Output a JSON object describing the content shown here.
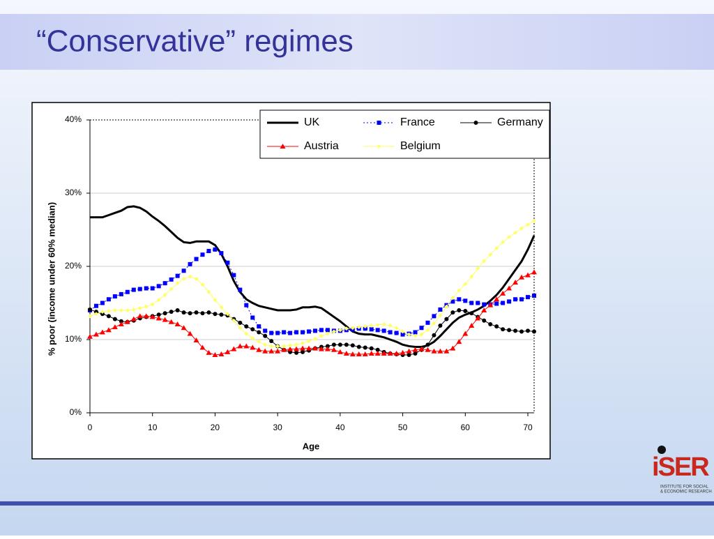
{
  "slide": {
    "title": "“Conservative” regimes",
    "logo": {
      "name": "iSER",
      "subtitle": [
        "INSTITUTE FOR SOCIAL",
        "& ECONOMIC RESEARCH"
      ]
    }
  },
  "chart_data": {
    "type": "line",
    "x_label": "Age",
    "y_label": "% poor (income under 60% median)",
    "x": [
      0,
      1,
      2,
      3,
      4,
      5,
      6,
      7,
      8,
      9,
      10,
      11,
      12,
      13,
      14,
      15,
      16,
      17,
      18,
      19,
      20,
      21,
      22,
      23,
      24,
      25,
      26,
      27,
      28,
      29,
      30,
      31,
      32,
      33,
      34,
      35,
      36,
      37,
      38,
      39,
      40,
      41,
      42,
      43,
      44,
      45,
      46,
      47,
      48,
      49,
      50,
      51,
      52,
      53,
      54,
      55,
      56,
      57,
      58,
      59,
      60,
      61,
      62,
      63,
      64,
      65,
      66,
      67,
      68,
      69,
      70,
      71
    ],
    "xlim": [
      0,
      71
    ],
    "xticks": [
      0,
      10,
      20,
      30,
      40,
      50,
      60,
      70
    ],
    "ylim": [
      0,
      40
    ],
    "yticks": [
      {
        "value": 0,
        "label": "0%"
      },
      {
        "value": 10,
        "label": "10%"
      },
      {
        "value": 20,
        "label": "20%"
      },
      {
        "value": 30,
        "label": "30%"
      },
      {
        "value": 40,
        "label": "40%"
      }
    ],
    "grid": true,
    "legend": "top-right",
    "series": [
      {
        "name": "UK",
        "color": "#000000",
        "marker": "none",
        "dash": "solid",
        "width": 3,
        "values": [
          26.7,
          26.7,
          26.7,
          27,
          27.3,
          27.6,
          28.1,
          28.2,
          28,
          27.5,
          26.8,
          26.2,
          25.5,
          24.7,
          23.9,
          23.3,
          23.2,
          23.4,
          23.4,
          23.4,
          22.9,
          21.7,
          20,
          18,
          16.5,
          15.5,
          15,
          14.6,
          14.4,
          14.2,
          14,
          14,
          14,
          14.1,
          14.4,
          14.4,
          14.5,
          14.3,
          13.7,
          13.1,
          12.5,
          11.8,
          11.1,
          10.8,
          10.7,
          10.7,
          10.5,
          10.3,
          10,
          9.7,
          9.3,
          9.1,
          9,
          9,
          9.2,
          9.7,
          10.5,
          11.4,
          12.3,
          13,
          13.4,
          13.7,
          14.1,
          14.6,
          15.3,
          16.1,
          17.1,
          18.3,
          19.5,
          20.7,
          22.3,
          24.2
        ]
      },
      {
        "name": "France",
        "color": "#0000ff",
        "marker": "square",
        "dash": "dotted",
        "width": 1,
        "values": [
          14,
          14.6,
          15,
          15.5,
          15.9,
          16.2,
          16.5,
          16.8,
          16.9,
          17,
          17,
          17.3,
          17.7,
          18.2,
          18.7,
          19.4,
          20.3,
          21,
          21.6,
          22.1,
          22.3,
          21.8,
          20.5,
          18.8,
          16.8,
          14.7,
          13,
          11.8,
          11.2,
          10.9,
          10.9,
          11,
          10.9,
          11,
          11,
          11.1,
          11.2,
          11.3,
          11.3,
          11.2,
          11.2,
          11.3,
          11.4,
          11.5,
          11.5,
          11.4,
          11.3,
          11.2,
          11,
          10.9,
          10.7,
          10.8,
          11,
          11.6,
          12.3,
          13.2,
          14.1,
          14.7,
          15.2,
          15.5,
          15.3,
          15,
          15,
          14.8,
          14.8,
          14.9,
          15,
          15.2,
          15.5,
          15.5,
          15.8,
          16
        ]
      },
      {
        "name": "Germany",
        "color": "#000000",
        "marker": "circle",
        "dash": "solid",
        "width": 1,
        "values": [
          14.1,
          13.8,
          13.5,
          13.2,
          12.8,
          12.5,
          12.4,
          12.6,
          12.9,
          13.1,
          13.2,
          13.4,
          13.6,
          13.8,
          14,
          13.7,
          13.6,
          13.7,
          13.6,
          13.7,
          13.5,
          13.4,
          13.3,
          12.8,
          12.3,
          11.8,
          11.4,
          11,
          10.5,
          9.8,
          9.1,
          8.6,
          8.3,
          8.2,
          8.3,
          8.5,
          8.8,
          9,
          9.1,
          9.3,
          9.3,
          9.3,
          9.2,
          9,
          8.9,
          8.8,
          8.6,
          8.3,
          8.1,
          8,
          7.9,
          7.9,
          8.1,
          8.6,
          9.3,
          10.6,
          11.9,
          12.8,
          13.7,
          14,
          13.9,
          13.6,
          13.1,
          12.6,
          12.1,
          11.8,
          11.4,
          11.3,
          11.2,
          11.1,
          11.2,
          11.1
        ]
      },
      {
        "name": "Austria",
        "color": "#ff0000",
        "marker": "triangle",
        "dash": "solid",
        "width": 1,
        "values": [
          10.4,
          10.7,
          11,
          11.3,
          11.7,
          12.1,
          12.4,
          12.8,
          13.2,
          13.2,
          13.1,
          12.9,
          12.7,
          12.4,
          12.1,
          11.6,
          10.8,
          9.9,
          8.9,
          8.2,
          7.9,
          8,
          8.3,
          8.7,
          9.1,
          9.1,
          8.9,
          8.6,
          8.4,
          8.4,
          8.4,
          8.6,
          8.7,
          8.7,
          8.8,
          8.8,
          8.8,
          8.7,
          8.7,
          8.6,
          8.3,
          8.1,
          8,
          8,
          8,
          8.1,
          8.1,
          8.1,
          8.1,
          8.1,
          8.2,
          8.4,
          8.6,
          8.7,
          8.6,
          8.4,
          8.4,
          8.4,
          8.8,
          9.7,
          10.8,
          11.9,
          12.9,
          14,
          14.7,
          15.5,
          16.3,
          17,
          17.8,
          18.5,
          18.8,
          19.2
        ]
      },
      {
        "name": "Belgium",
        "color": "#ffff66",
        "marker": "diamond",
        "dash": "solid",
        "width": 1,
        "values": [
          13.2,
          13.5,
          13.8,
          13.9,
          14,
          14,
          14,
          14.1,
          14.3,
          14.5,
          14.8,
          15.4,
          16.1,
          16.9,
          17.7,
          18.3,
          18.6,
          18.3,
          17.5,
          16.5,
          15.4,
          14.4,
          13.5,
          12.6,
          11.6,
          10.8,
          10.2,
          9.7,
          9.3,
          9.1,
          9.1,
          9.1,
          9.2,
          9.3,
          9.5,
          9.8,
          10.1,
          10.5,
          10.8,
          11.1,
          11.3,
          11.5,
          11.6,
          11.7,
          11.8,
          11.9,
          12,
          12.1,
          11.9,
          11.6,
          11.1,
          10.7,
          10.5,
          10.7,
          11.3,
          12.2,
          13.3,
          14.5,
          15.7,
          16.7,
          17.6,
          18.6,
          19.7,
          20.7,
          21.6,
          22.5,
          23.3,
          24,
          24.6,
          25.2,
          25.7,
          26.2
        ]
      }
    ]
  }
}
